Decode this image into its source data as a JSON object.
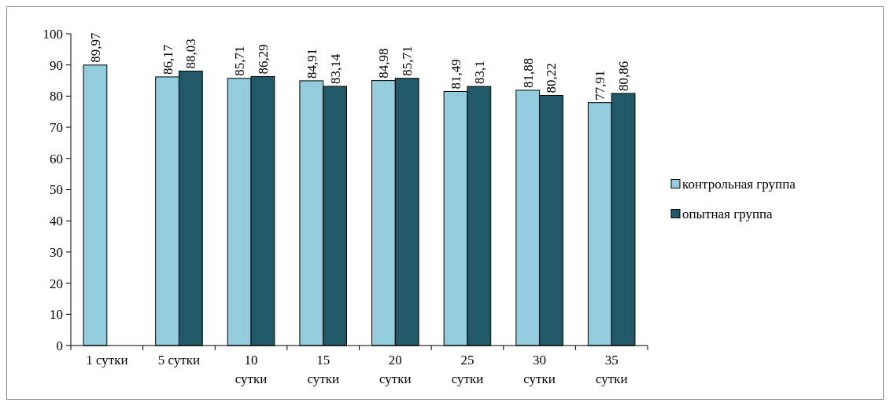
{
  "chart_data": {
    "type": "bar",
    "categories": [
      "1 сутки",
      "5 сутки",
      "10 сутки",
      "15 сутки",
      "20 сутки",
      "25 сутки",
      "30 сутки",
      "35 сутки"
    ],
    "series": [
      {
        "name": "контрольная группа",
        "color": "#93cddd",
        "values": [
          89.97,
          86.17,
          85.71,
          84.91,
          84.98,
          81.49,
          81.88,
          77.91
        ],
        "value_labels": [
          "89,97",
          "86,17",
          "85,71",
          "84,91",
          "84,98",
          "81,49",
          "81,88",
          "77,91"
        ]
      },
      {
        "name": "опытная группа",
        "color": "#215968",
        "values": [
          null,
          88.03,
          86.29,
          83.14,
          85.71,
          83.1,
          80.22,
          80.86
        ],
        "value_labels": [
          null,
          "88,03",
          "86,29",
          "83,14",
          "85,71",
          "83,1",
          "80,22",
          "80,86"
        ]
      }
    ],
    "ylim": [
      0,
      100
    ],
    "yticks": [
      0,
      10,
      20,
      30,
      40,
      50,
      60,
      70,
      80,
      90,
      100
    ],
    "grid": false,
    "legend": "right"
  }
}
